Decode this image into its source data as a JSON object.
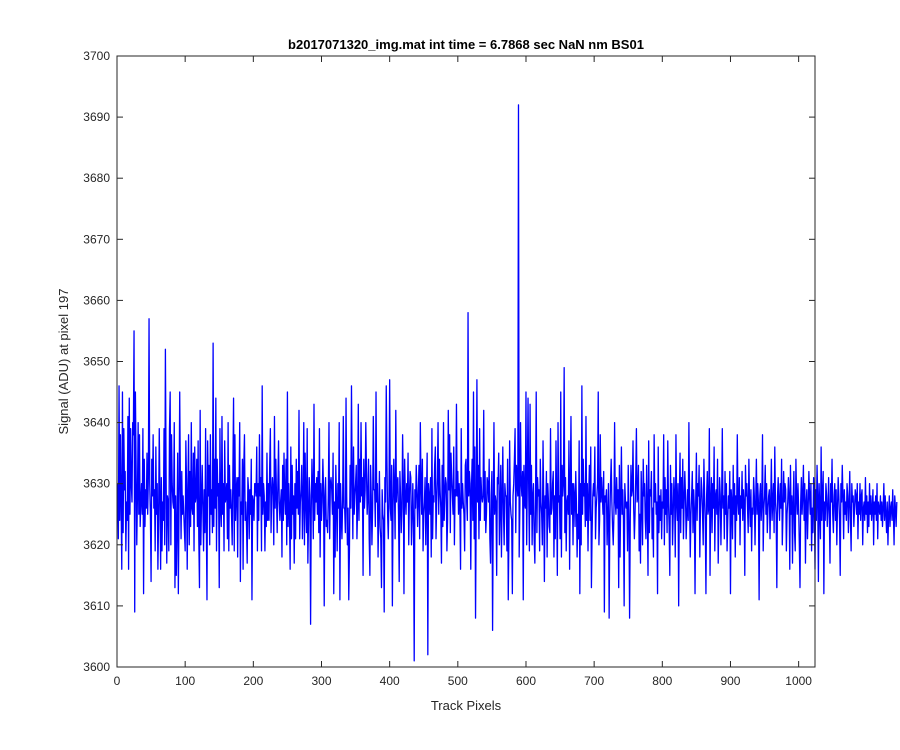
{
  "chart_data": {
    "type": "line",
    "title": "b2017071320_img.mat int time = 6.7868 sec  NaN nm BS01",
    "xlabel": "Track Pixels",
    "ylabel": "Signal (ADU) at pixel 197",
    "xlim": [
      0,
      1024
    ],
    "ylim": [
      3600,
      3700
    ],
    "xticks": [
      0,
      100,
      200,
      300,
      400,
      500,
      600,
      700,
      800,
      900,
      1000
    ],
    "yticks": [
      3600,
      3610,
      3620,
      3630,
      3640,
      3650,
      3660,
      3670,
      3680,
      3690,
      3700
    ],
    "grid": false,
    "legend": "none",
    "series": [
      {
        "color": "#0000ff",
        "x_start": 1,
        "x_step": 1,
        "y": [
          3630,
          3621,
          3646,
          3624,
          3638,
          3627,
          3616,
          3645,
          3622,
          3639,
          3629,
          3632,
          3619,
          3627,
          3624,
          3641,
          3616,
          3644,
          3625,
          3639,
          3630,
          3627,
          3640,
          3638,
          3655,
          3609,
          3645,
          3633,
          3620,
          3628,
          3640,
          3625,
          3638,
          3623,
          3627,
          3630,
          3625,
          3639,
          3612,
          3634,
          3623,
          3629,
          3626,
          3635,
          3625,
          3631,
          3657,
          3630,
          3625,
          3614,
          3634,
          3628,
          3638,
          3626,
          3629,
          3619,
          3636,
          3625,
          3630,
          3616,
          3624,
          3639,
          3628,
          3616,
          3631,
          3619,
          3627,
          3624,
          3639,
          3620,
          3652,
          3632,
          3617,
          3628,
          3627,
          3619,
          3639,
          3645,
          3620,
          3638,
          3630,
          3627,
          3626,
          3640,
          3613,
          3628,
          3615,
          3623,
          3635,
          3612,
          3626,
          3645,
          3630,
          3621,
          3632,
          3625,
          3628,
          3625,
          3622,
          3619,
          3637,
          3630,
          3616,
          3629,
          3638,
          3620,
          3632,
          3623,
          3640,
          3626,
          3625,
          3635,
          3619,
          3636,
          3627,
          3628,
          3634,
          3623,
          3637,
          3621,
          3613,
          3642,
          3620,
          3627,
          3633,
          3626,
          3619,
          3629,
          3622,
          3639,
          3624,
          3611,
          3637,
          3628,
          3633,
          3620,
          3638,
          3625,
          3629,
          3622,
          3653,
          3623,
          3634,
          3626,
          3644,
          3619,
          3634,
          3628,
          3630,
          3613,
          3639,
          3626,
          3623,
          3641,
          3625,
          3630,
          3619,
          3637,
          3627,
          3628,
          3630,
          3621,
          3640,
          3619,
          3633,
          3626,
          3629,
          3625,
          3620,
          3632,
          3644,
          3619,
          3638,
          3624,
          3629,
          3631,
          3618,
          3631,
          3628,
          3640,
          3614,
          3627,
          3625,
          3634,
          3616,
          3633,
          3638,
          3624,
          3627,
          3623,
          3617,
          3631,
          3629,
          3621,
          3629,
          3625,
          3634,
          3611,
          3628,
          3627,
          3624,
          3630,
          3630,
          3628,
          3636,
          3619,
          3630,
          3624,
          3638,
          3628,
          3631,
          3619,
          3646,
          3625,
          3630,
          3628,
          3619,
          3627,
          3623,
          3635,
          3624,
          3630,
          3624,
          3633,
          3639,
          3622,
          3628,
          3631,
          3629,
          3620,
          3641,
          3626,
          3634,
          3628,
          3622,
          3630,
          3637,
          3627,
          3624,
          3627,
          3629,
          3618,
          3633,
          3624,
          3635,
          3628,
          3625,
          3634,
          3620,
          3645,
          3623,
          3630,
          3625,
          3616,
          3636,
          3621,
          3633,
          3625,
          3628,
          3617,
          3630,
          3621,
          3634,
          3626,
          3632,
          3625,
          3642,
          3621,
          3627,
          3629,
          3633,
          3621,
          3627,
          3640,
          3620,
          3635,
          3627,
          3622,
          3639,
          3617,
          3624,
          3631,
          3628,
          3607,
          3626,
          3634,
          3629,
          3621,
          3643,
          3624,
          3630,
          3627,
          3631,
          3625,
          3632,
          3622,
          3639,
          3618,
          3630,
          3624,
          3627,
          3634,
          3629,
          3610,
          3628,
          3631,
          3623,
          3624,
          3622,
          3628,
          3640,
          3621,
          3630,
          3631,
          3629,
          3625,
          3635,
          3612,
          3627,
          3618,
          3633,
          3627,
          3619,
          3630,
          3626,
          3640,
          3611,
          3630,
          3625,
          3621,
          3627,
          3641,
          3626,
          3626,
          3622,
          3644,
          3628,
          3620,
          3626,
          3611,
          3619,
          3633,
          3626,
          3646,
          3631,
          3621,
          3636,
          3625,
          3628,
          3630,
          3633,
          3621,
          3626,
          3643,
          3624,
          3634,
          3627,
          3640,
          3628,
          3631,
          3615,
          3634,
          3626,
          3629,
          3640,
          3632,
          3625,
          3628,
          3634,
          3621,
          3615,
          3633,
          3628,
          3620,
          3626,
          3641,
          3629,
          3629,
          3623,
          3645,
          3627,
          3630,
          3618,
          3625,
          3632,
          3623,
          3621,
          3613,
          3629,
          3625,
          3624,
          3609,
          3631,
          3627,
          3646,
          3634,
          3625,
          3621,
          3628,
          3647,
          3626,
          3624,
          3633,
          3610,
          3626,
          3634,
          3629,
          3621,
          3642,
          3627,
          3630,
          3631,
          3625,
          3614,
          3632,
          3628,
          3622,
          3626,
          3638,
          3630,
          3612,
          3634,
          3628,
          3625,
          3630,
          3627,
          3635,
          3620,
          3628,
          3632,
          3631,
          3620,
          3624,
          3630,
          3624,
          3601,
          3629,
          3626,
          3633,
          3629,
          3623,
          3628,
          3633,
          3621,
          3640,
          3630,
          3625,
          3634,
          3619,
          3625,
          3627,
          3631,
          3620,
          3628,
          3635,
          3602,
          3630,
          3628,
          3625,
          3631,
          3618,
          3639,
          3621,
          3628,
          3627,
          3633,
          3636,
          3621,
          3627,
          3631,
          3640,
          3625,
          3634,
          3629,
          3626,
          3617,
          3633,
          3623,
          3640,
          3624,
          3628,
          3631,
          3630,
          3619,
          3624,
          3642,
          3629,
          3638,
          3622,
          3635,
          3631,
          3628,
          3625,
          3636,
          3620,
          3629,
          3628,
          3643,
          3628,
          3632,
          3625,
          3630,
          3626,
          3616,
          3639,
          3626,
          3630,
          3627,
          3625,
          3619,
          3633,
          3634,
          3627,
          3624,
          3658,
          3628,
          3632,
          3630,
          3616,
          3629,
          3634,
          3624,
          3645,
          3621,
          3636,
          3608,
          3626,
          3647,
          3627,
          3633,
          3621,
          3639,
          3624,
          3631,
          3628,
          3627,
          3628,
          3642,
          3624,
          3632,
          3622,
          3625,
          3631,
          3630,
          3627,
          3634,
          3621,
          3617,
          3628,
          3632,
          3606,
          3626,
          3640,
          3625,
          3628,
          3627,
          3615,
          3631,
          3630,
          3635,
          3620,
          3626,
          3633,
          3618,
          3628,
          3636,
          3625,
          3620,
          3630,
          3628,
          3628,
          3619,
          3634,
          3611,
          3622,
          3637,
          3627,
          3625,
          3624,
          3612,
          3628,
          3630,
          3634,
          3639,
          3622,
          3633,
          3630,
          3628,
          3692,
          3618,
          3626,
          3640,
          3630,
          3628,
          3632,
          3611,
          3633,
          3627,
          3626,
          3645,
          3620,
          3631,
          3644,
          3629,
          3619,
          3643,
          3625,
          3633,
          3620,
          3628,
          3630,
          3621,
          3617,
          3627,
          3645,
          3622,
          3631,
          3628,
          3629,
          3619,
          3634,
          3627,
          3625,
          3620,
          3637,
          3627,
          3614,
          3628,
          3626,
          3632,
          3618,
          3630,
          3627,
          3623,
          3622,
          3639,
          3625,
          3626,
          3630,
          3632,
          3618,
          3628,
          3621,
          3637,
          3627,
          3615,
          3640,
          3627,
          3628,
          3621,
          3645,
          3618,
          3633,
          3628,
          3630,
          3649,
          3622,
          3631,
          3619,
          3627,
          3628,
          3625,
          3637,
          3616,
          3630,
          3641,
          3625,
          3630,
          3620,
          3630,
          3628,
          3623,
          3632,
          3627,
          3618,
          3625,
          3621,
          3637,
          3612,
          3630,
          3620,
          3646,
          3625,
          3634,
          3628,
          3630,
          3623,
          3641,
          3624,
          3630,
          3619,
          3628,
          3633,
          3624,
          3636,
          3613,
          3622,
          3628,
          3630,
          3628,
          3636,
          3621,
          3626,
          3628,
          3630,
          3645,
          3620,
          3624,
          3638,
          3627,
          3631,
          3628,
          3625,
          3632,
          3609,
          3628,
          3627,
          3629,
          3620,
          3625,
          3630,
          3608,
          3624,
          3630,
          3634,
          3627,
          3623,
          3620,
          3625,
          3640,
          3627,
          3625,
          3631,
          3626,
          3629,
          3613,
          3633,
          3618,
          3627,
          3636,
          3625,
          3629,
          3624,
          3610,
          3630,
          3627,
          3626,
          3627,
          3619,
          3633,
          3625,
          3608,
          3624,
          3633,
          3628,
          3629,
          3637,
          3626,
          3621,
          3625,
          3631,
          3639,
          3627,
          3628,
          3633,
          3619,
          3625,
          3617,
          3632,
          3627,
          3620,
          3634,
          3628,
          3630,
          3624,
          3621,
          3633,
          3626,
          3615,
          3637,
          3622,
          3629,
          3628,
          3632,
          3621,
          3626,
          3618,
          3638,
          3627,
          3630,
          3625,
          3627,
          3612,
          3636,
          3622,
          3628,
          3624,
          3629,
          3621,
          3627,
          3626,
          3638,
          3620,
          3631,
          3625,
          3629,
          3622,
          3637,
          3627,
          3623,
          3615,
          3633,
          3625,
          3630,
          3620,
          3625,
          3631,
          3628,
          3618,
          3638,
          3627,
          3624,
          3630,
          3610,
          3628,
          3635,
          3622,
          3631,
          3626,
          3634,
          3621,
          3627,
          3632,
          3628,
          3621,
          3625,
          3629,
          3624,
          3640,
          3627,
          3618,
          3625,
          3628,
          3632,
          3622,
          3629,
          3626,
          3612,
          3627,
          3635,
          3624,
          3630,
          3628,
          3633,
          3618,
          3626,
          3631,
          3629,
          3625,
          3620,
          3634,
          3628,
          3624,
          3612,
          3628,
          3632,
          3625,
          3626,
          3639,
          3615,
          3627,
          3631,
          3622,
          3630,
          3626,
          3636,
          3619,
          3628,
          3629,
          3625,
          3634,
          3617,
          3625,
          3631,
          3628,
          3620,
          3627,
          3639,
          3626,
          3628,
          3621,
          3632,
          3625,
          3630,
          3619,
          3624,
          3628,
          3626,
          3632,
          3612,
          3629,
          3627,
          3621,
          3633,
          3625,
          3630,
          3618,
          3628,
          3624,
          3638,
          3627,
          3625,
          3631,
          3620,
          3628,
          3626,
          3632,
          3624,
          3629,
          3627,
          3615,
          3633,
          3628,
          3630,
          3626,
          3622,
          3634,
          3627,
          3623,
          3629,
          3619,
          3626,
          3625,
          3631,
          3628,
          3620,
          3627,
          3634,
          3625,
          3630,
          3627,
          3611,
          3628,
          3630,
          3624,
          3627,
          3638,
          3619,
          3626,
          3628,
          3633,
          3625,
          3630,
          3622,
          3626,
          3628,
          3629,
          3621,
          3627,
          3634,
          3624,
          3627,
          3630,
          3622,
          3636,
          3627,
          3625,
          3613,
          3628,
          3631,
          3627,
          3624,
          3630,
          3626,
          3634,
          3620,
          3625,
          3632,
          3627,
          3630,
          3629,
          3619,
          3625,
          3627,
          3631,
          3628,
          3616,
          3633,
          3625,
          3628,
          3617,
          3627,
          3632,
          3622,
          3619,
          3634,
          3628,
          3625,
          3630,
          3626,
          3620,
          3613,
          3627,
          3631,
          3625,
          3628,
          3633,
          3624,
          3630,
          3617,
          3627,
          3629,
          3621,
          3626,
          3632,
          3628,
          3625,
          3630,
          3619,
          3626,
          3622,
          3631,
          3627,
          3616,
          3629,
          3624,
          3633,
          3628,
          3614,
          3630,
          3626,
          3621,
          3636,
          3624,
          3628,
          3632,
          3612,
          3627,
          3624,
          3630,
          3628,
          3623,
          3626,
          3631,
          3625,
          3617,
          3630,
          3627,
          3634,
          3625,
          3622,
          3628,
          3630,
          3624,
          3629,
          3620,
          3626,
          3631,
          3628,
          3624,
          3615,
          3630,
          3627,
          3633,
          3628,
          3621,
          3629,
          3625,
          3627,
          3624,
          3630,
          3628,
          3622,
          3627,
          3632,
          3624,
          3619,
          3630,
          3627,
          3628,
          3623,
          3626,
          3629,
          3628,
          3625,
          3630,
          3621,
          3627,
          3625,
          3630,
          3624,
          3628,
          3629,
          3620,
          3626,
          3627,
          3624,
          3631,
          3625,
          3628,
          3622,
          3627,
          3623,
          3630,
          3625,
          3628,
          3624,
          3626,
          3629,
          3620,
          3627,
          3625,
          3628,
          3624,
          3630,
          3621,
          3627,
          3626,
          3625,
          3628,
          3624,
          3627,
          3623,
          3626,
          3630,
          3624,
          3628,
          3625,
          3622,
          3627,
          3620,
          3625,
          3628,
          3623,
          3626,
          3627,
          3624,
          3629,
          3625,
          3620,
          3628,
          3626,
          3623,
          3627
        ]
      }
    ]
  }
}
